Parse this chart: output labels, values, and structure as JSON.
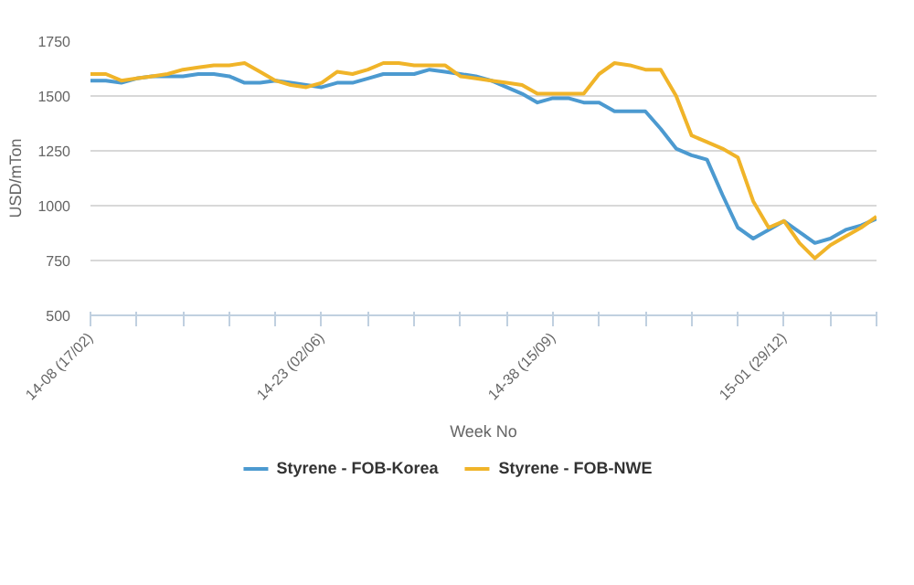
{
  "chart_data": {
    "type": "line",
    "xlabel": "Week No",
    "ylabel": "USD/mTon",
    "categories": [
      "14-08 (17/02)",
      null,
      null,
      null,
      null,
      null,
      null,
      null,
      null,
      null,
      null,
      null,
      null,
      null,
      null,
      "14-23 (02/06)",
      null,
      null,
      null,
      null,
      null,
      null,
      null,
      null,
      null,
      null,
      null,
      null,
      null,
      null,
      "14-38 (15/09)",
      null,
      null,
      null,
      null,
      null,
      null,
      null,
      null,
      null,
      null,
      null,
      null,
      null,
      null,
      "15-01 (29/12)",
      null,
      null,
      null,
      null,
      null,
      null
    ],
    "ylim": [
      500,
      1750
    ],
    "yticks": [
      500,
      750,
      1000,
      1250,
      1500,
      1750
    ],
    "grid": "y",
    "legend": "bottom",
    "marker": "none",
    "line_style": "solid",
    "series": [
      {
        "name": "Styrene - FOB-Korea",
        "color": "#4c9ad0",
        "values": [
          1570,
          1570,
          1560,
          1580,
          1590,
          1590,
          1590,
          1600,
          1600,
          1590,
          1560,
          1560,
          1570,
          1560,
          1550,
          1540,
          1560,
          1560,
          1580,
          1600,
          1600,
          1600,
          1620,
          1610,
          1600,
          1590,
          1570,
          1540,
          1510,
          1470,
          1490,
          1490,
          1470,
          1470,
          1430,
          1430,
          1430,
          1350,
          1260,
          1230,
          1210,
          1050,
          900,
          850,
          890,
          930,
          880,
          830,
          850,
          890,
          910,
          940
        ]
      },
      {
        "name": "Styrene - FOB-NWE",
        "color": "#f0b429",
        "values": [
          1600,
          1600,
          1570,
          1580,
          1590,
          1600,
          1620,
          1630,
          1640,
          1640,
          1650,
          1610,
          1570,
          1550,
          1540,
          1560,
          1610,
          1600,
          1620,
          1650,
          1650,
          1640,
          1640,
          1640,
          1590,
          1580,
          1570,
          1560,
          1550,
          1510,
          1510,
          1510,
          1510,
          1600,
          1650,
          1640,
          1620,
          1620,
          1500,
          1320,
          1290,
          1260,
          1220,
          1020,
          900,
          930,
          830,
          760,
          820,
          860,
          900,
          950
        ]
      }
    ]
  }
}
